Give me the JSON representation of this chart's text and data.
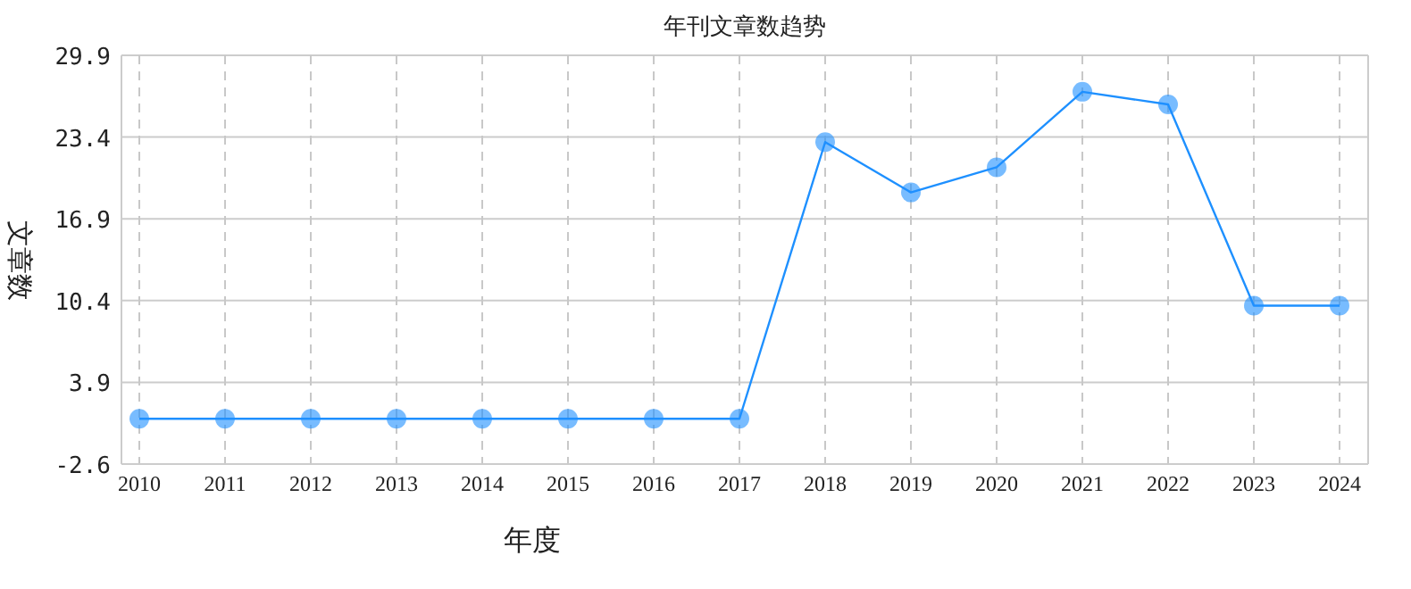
{
  "chart_data": {
    "type": "line",
    "title": "年刊文章数趋势",
    "xlabel": "年度",
    "ylabel": "文章数",
    "categories": [
      "2010",
      "2011",
      "2012",
      "2013",
      "2014",
      "2015",
      "2016",
      "2017",
      "2018",
      "2019",
      "2020",
      "2021",
      "2022",
      "2023",
      "2024"
    ],
    "series": [
      {
        "color": "#1e90ff",
        "values": [
          1,
          1,
          1,
          1,
          1,
          1,
          1,
          1,
          23,
          19,
          21,
          27,
          26,
          10,
          10
        ]
      }
    ],
    "ylim": [
      -2.6,
      29.9
    ],
    "yticks": [
      -2.6,
      3.9,
      10.4,
      16.9,
      23.4,
      29.9
    ],
    "grid": true,
    "marker": "circle",
    "line_style": "solid"
  }
}
